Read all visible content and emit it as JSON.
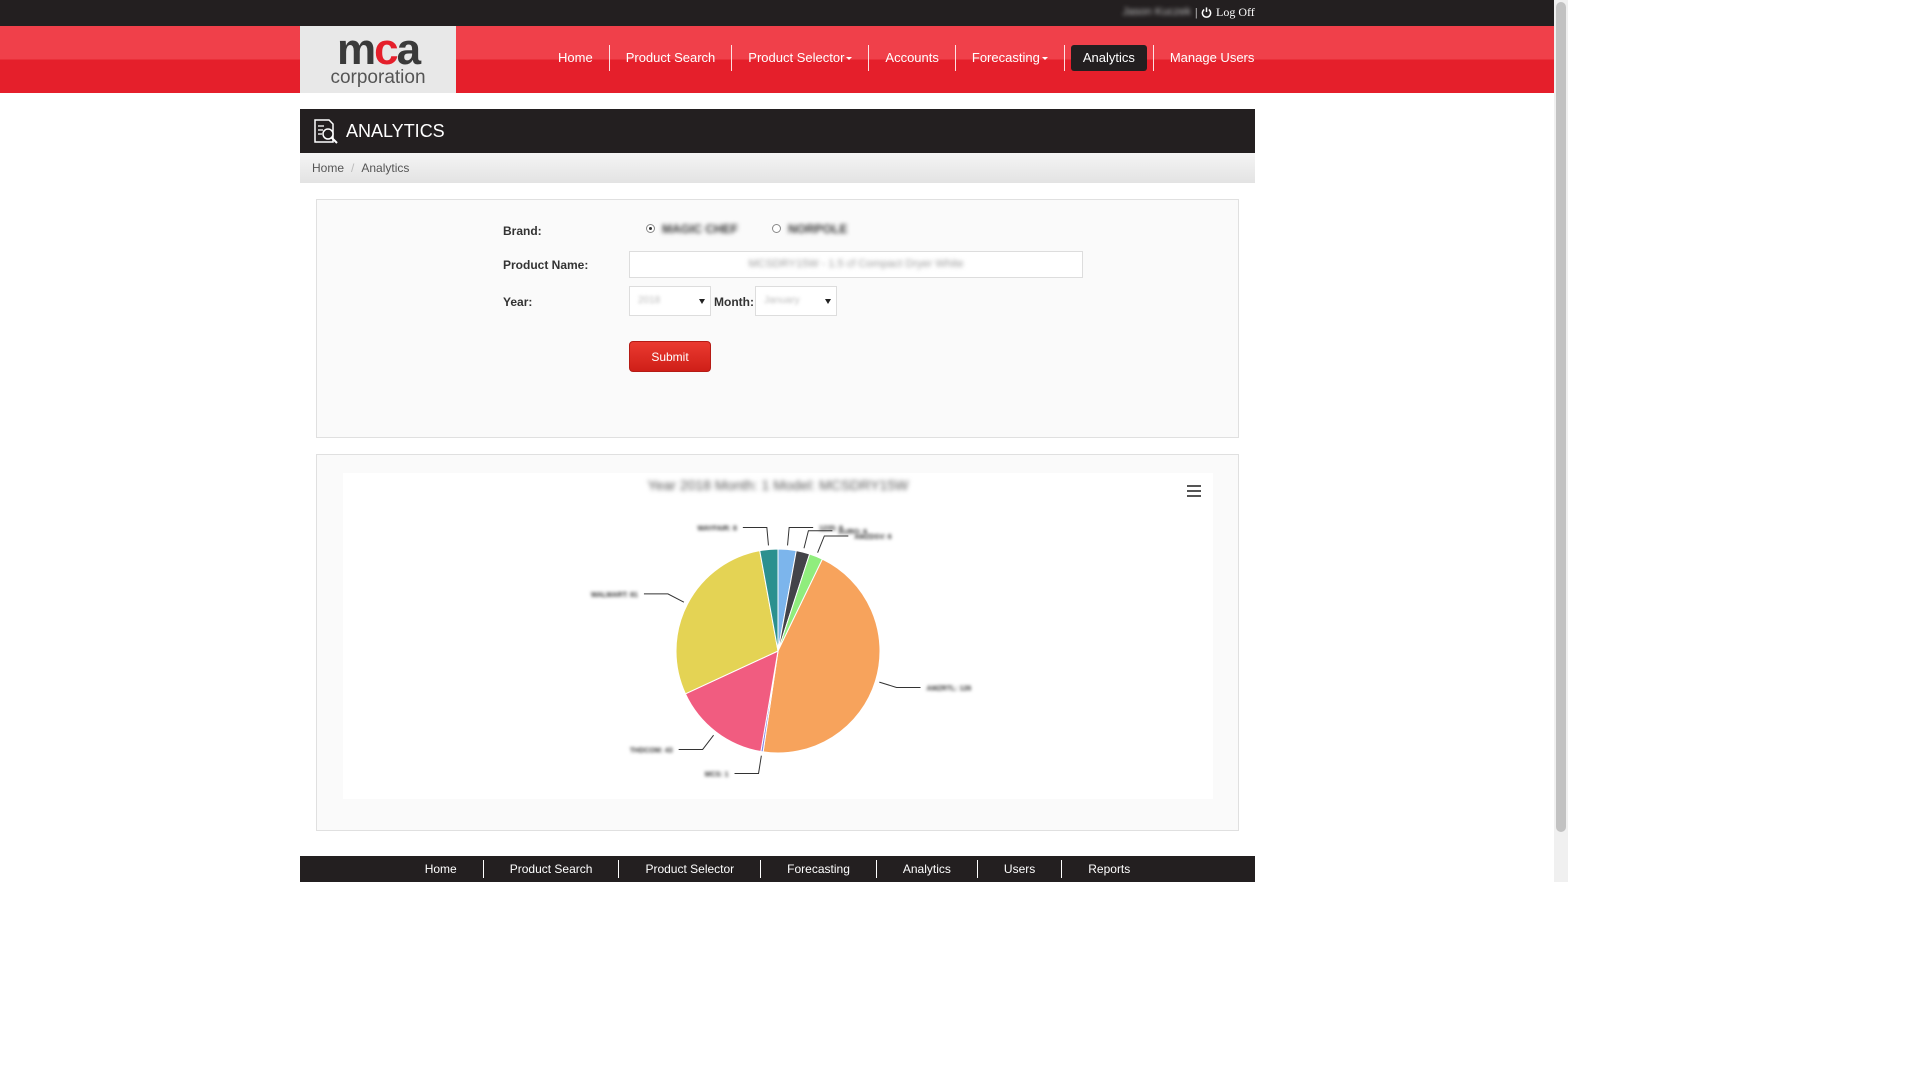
{
  "topbar": {
    "user_name": "Jason Kuczek",
    "separator": "|",
    "logoff_label": "Log Off"
  },
  "logo": {
    "mark_left": "m",
    "mark_mid": "c",
    "mark_right": "a",
    "subtitle": "corporation"
  },
  "nav": {
    "items": [
      {
        "label": "Home",
        "dropdown": false
      },
      {
        "label": "Product Search",
        "dropdown": false
      },
      {
        "label": "Product Selector",
        "dropdown": true
      },
      {
        "label": "Accounts",
        "dropdown": false
      },
      {
        "label": "Forecasting",
        "dropdown": true
      },
      {
        "label": "Analytics",
        "dropdown": false,
        "active": true
      },
      {
        "label": "Manage Users",
        "dropdown": false
      }
    ]
  },
  "page": {
    "title": "ANALYTICS",
    "breadcrumb": [
      "Home",
      "Analytics"
    ]
  },
  "form": {
    "brand_label": "Brand:",
    "brand_options": [
      "MAGIC CHEF",
      "NORPOLE"
    ],
    "brand_selected": "MAGIC CHEF",
    "product_label": "Product Name:",
    "product_value": "MCSDRY15W - 1.5 cf Compact Dryer White",
    "year_label": "Year:",
    "year_value": "2018",
    "month_label": "Month:",
    "month_value": "January",
    "submit_label": "Submit"
  },
  "chart_data": {
    "type": "pie",
    "title": "Year 2018 Month: 1 Model: MCSDRY15W",
    "slices": [
      {
        "name": "1235",
        "value": 8,
        "color": "#7cb5ec"
      },
      {
        "name": "AURO",
        "value": 6,
        "color": "#434348"
      },
      {
        "name": "AMZDSV",
        "value": 6,
        "color": "#90ed7d"
      },
      {
        "name": "AMZRTL",
        "value": 126,
        "color": "#f7a35c"
      },
      {
        "name": "MCS",
        "value": 1,
        "color": "#8085e9"
      },
      {
        "name": "THDCOM",
        "value": 43,
        "color": "#f15c80"
      },
      {
        "name": "WALMART",
        "value": 81,
        "color": "#e4d354"
      },
      {
        "name": "WAYFAIR",
        "value": 8,
        "color": "#2b908f"
      }
    ]
  },
  "footer": {
    "items": [
      "Home",
      "Product Search",
      "Product Selector",
      "Forecasting",
      "Analytics",
      "Users",
      "Reports"
    ]
  }
}
